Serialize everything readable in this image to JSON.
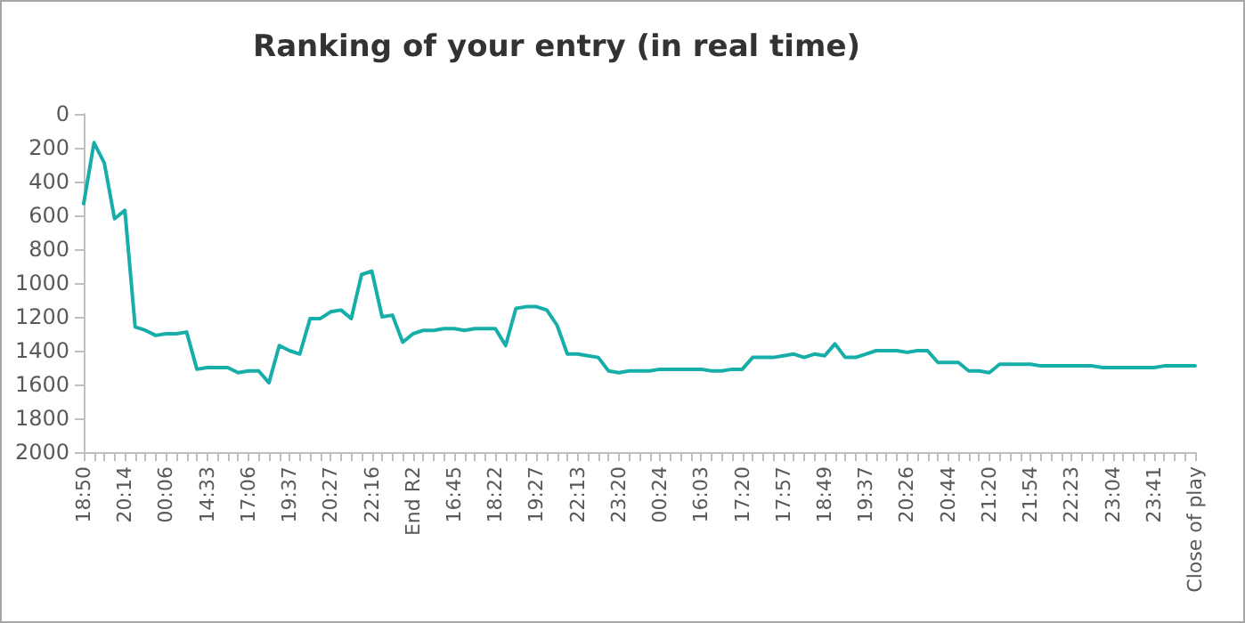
{
  "chart_data": {
    "type": "line",
    "title": "Ranking of your entry (in real time)",
    "categories": [
      "18:50",
      null,
      null,
      null,
      "20:14",
      null,
      null,
      null,
      "00:06",
      null,
      null,
      null,
      "14:33",
      null,
      null,
      null,
      "17:06",
      null,
      null,
      null,
      "19:37",
      null,
      null,
      null,
      "20:27",
      null,
      null,
      null,
      "22:16",
      null,
      null,
      null,
      "End R2",
      null,
      null,
      null,
      "16:45",
      null,
      null,
      null,
      "18:22",
      null,
      null,
      null,
      "19:27",
      null,
      null,
      null,
      "22:13",
      null,
      null,
      null,
      "23:20",
      null,
      null,
      null,
      "00:24",
      null,
      null,
      null,
      "16:03",
      null,
      null,
      null,
      "17:20",
      null,
      null,
      null,
      "17:57",
      null,
      null,
      null,
      "18:49",
      null,
      null,
      null,
      "19:37",
      null,
      null,
      null,
      "20:26",
      null,
      null,
      null,
      "20:44",
      null,
      null,
      null,
      "21:20",
      null,
      null,
      null,
      "21:54",
      null,
      null,
      null,
      "22:23",
      null,
      null,
      null,
      "23:04",
      null,
      null,
      null,
      "23:41",
      null,
      null,
      null,
      "Close of play"
    ],
    "series": [
      {
        "color": "#17aeaa",
        "values": [
          530,
          170,
          290,
          620,
          570,
          1260,
          1280,
          1310,
          1300,
          1300,
          1290,
          1510,
          1500,
          1500,
          1500,
          1530,
          1520,
          1520,
          1590,
          1370,
          1400,
          1420,
          1210,
          1210,
          1170,
          1160,
          1210,
          950,
          930,
          1200,
          1190,
          1350,
          1300,
          1280,
          1280,
          1270,
          1270,
          1280,
          1270,
          1270,
          1270,
          1370,
          1150,
          1140,
          1140,
          1160,
          1250,
          1420,
          1420,
          1430,
          1440,
          1520,
          1530,
          1520,
          1520,
          1520,
          1510,
          1510,
          1510,
          1510,
          1510,
          1520,
          1520,
          1510,
          1510,
          1440,
          1440,
          1440,
          1430,
          1420,
          1440,
          1420,
          1430,
          1360,
          1440,
          1440,
          1420,
          1400,
          1400,
          1400,
          1410,
          1400,
          1400,
          1470,
          1470,
          1470,
          1520,
          1520,
          1530,
          1480,
          1480,
          1480,
          1480,
          1490,
          1490,
          1490,
          1490,
          1490,
          1490,
          1500,
          1500,
          1500,
          1500,
          1500,
          1500,
          1490,
          1490,
          1490,
          1490
        ]
      }
    ],
    "ylim": [
      2000,
      0
    ],
    "yticks": [
      0,
      200,
      400,
      600,
      800,
      1000,
      1200,
      1400,
      1600,
      1800,
      2000
    ],
    "grid": false,
    "marker": "none",
    "line_style": "solid"
  }
}
